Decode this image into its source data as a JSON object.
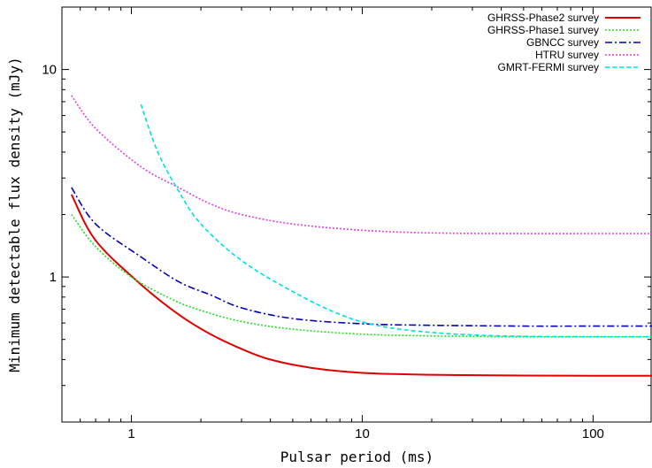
{
  "chart_data": {
    "type": "line",
    "xlabel": "Pulsar period (ms)",
    "ylabel": "Minimum detectable flux density (mJy)",
    "xscale": "log",
    "yscale": "log",
    "xlim": [
      0.5,
      180
    ],
    "ylim": [
      0.2,
      20
    ],
    "xticks": [
      1,
      10,
      100
    ],
    "xtick_labels": [
      "1",
      "10",
      "100"
    ],
    "yticks": [
      1,
      10
    ],
    "ytick_labels": [
      "1",
      "10"
    ],
    "grid": false,
    "legend_position": "top-right",
    "series": [
      {
        "name": "GHRSS-Phase2 survey",
        "color": "#e00000",
        "dash": "solid",
        "x": [
          0.55,
          0.7,
          1.1,
          1.6,
          2.2,
          3,
          4,
          6,
          10,
          20,
          50,
          100,
          180
        ],
        "y": [
          2.5,
          1.5,
          0.92,
          0.66,
          0.53,
          0.45,
          0.4,
          0.365,
          0.345,
          0.338,
          0.335,
          0.334,
          0.334
        ]
      },
      {
        "name": "GHRSS-Phase1 survey",
        "color": "#20dd20",
        "dash": "dotted",
        "x": [
          0.55,
          0.7,
          1,
          1.5,
          2,
          3,
          5,
          10,
          20,
          50,
          100,
          180
        ],
        "y": [
          2.0,
          1.4,
          1.0,
          0.78,
          0.69,
          0.61,
          0.56,
          0.53,
          0.52,
          0.515,
          0.515,
          0.515
        ]
      },
      {
        "name": "GBNCC survey",
        "color": "#0000c0",
        "dash": "dashdot",
        "x": [
          0.55,
          0.7,
          1.1,
          1.6,
          2.2,
          3,
          5,
          10,
          20,
          50,
          100,
          180
        ],
        "y": [
          2.7,
          1.8,
          1.25,
          0.95,
          0.82,
          0.71,
          0.63,
          0.595,
          0.585,
          0.58,
          0.58,
          0.58
        ]
      },
      {
        "name": "HTRU survey",
        "color": "#e040e0",
        "dash": "dotted",
        "x": [
          0.55,
          0.7,
          1.1,
          1.6,
          2.2,
          3,
          5,
          10,
          20,
          50,
          100,
          180
        ],
        "y": [
          7.5,
          5.2,
          3.4,
          2.7,
          2.25,
          2.0,
          1.8,
          1.68,
          1.63,
          1.62,
          1.62,
          1.62
        ]
      },
      {
        "name": "GMRT-FERMI survey",
        "color": "#00e0e0",
        "dash": "dashed",
        "x": [
          1.1,
          1.3,
          1.6,
          2,
          3,
          5,
          8,
          12,
          20,
          40,
          100,
          180
        ],
        "y": [
          6.8,
          4.0,
          2.6,
          1.8,
          1.2,
          0.85,
          0.66,
          0.58,
          0.54,
          0.52,
          0.515,
          0.515
        ]
      }
    ]
  }
}
